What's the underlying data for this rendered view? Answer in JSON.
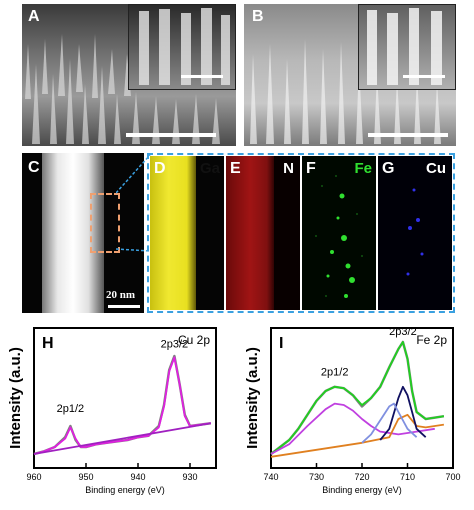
{
  "panels": {
    "A": {
      "label": "A"
    },
    "B": {
      "label": "B"
    },
    "C": {
      "label": "C",
      "scale_bar": "20 nm"
    },
    "D": {
      "label": "D",
      "element": "Ga",
      "color": "#e8e020"
    },
    "E": {
      "label": "E",
      "element": "N",
      "color": "#c01818"
    },
    "F": {
      "label": "F",
      "element": "Fe",
      "color": "#30e030"
    },
    "G": {
      "label": "G",
      "element": "Cu",
      "color": "#3030e8"
    }
  },
  "chart_data": [
    {
      "type": "line",
      "panel": "H",
      "title": "Cu 2p",
      "xlabel": "Binding energy (eV)",
      "ylabel": "Intensity (a.u.)",
      "xlim": [
        960,
        925
      ],
      "x_reversed": true,
      "xticks": [
        960,
        950,
        940,
        930
      ],
      "annotations": [
        "2p1/2",
        "2p3/2"
      ],
      "series": [
        {
          "color": "#808080",
          "x": [
            960,
            958,
            956,
            954,
            953,
            952,
            951,
            950,
            948,
            946,
            944,
            942,
            940,
            938,
            936,
            935,
            934,
            933,
            932,
            931,
            930,
            928,
            926
          ],
          "y": [
            0.1,
            0.12,
            0.15,
            0.22,
            0.3,
            0.2,
            0.15,
            0.15,
            0.17,
            0.18,
            0.19,
            0.2,
            0.22,
            0.23,
            0.3,
            0.45,
            0.7,
            0.8,
            0.6,
            0.38,
            0.3,
            0.31,
            0.32
          ]
        },
        {
          "color": "#e020e0",
          "x": [
            960,
            958,
            956,
            954,
            953,
            952,
            951,
            950,
            948,
            946,
            944,
            942,
            940,
            938,
            936,
            935,
            934,
            933,
            932,
            931,
            930,
            928,
            926
          ],
          "y": [
            0.1,
            0.12,
            0.15,
            0.21,
            0.29,
            0.21,
            0.15,
            0.15,
            0.17,
            0.18,
            0.19,
            0.2,
            0.22,
            0.23,
            0.29,
            0.44,
            0.69,
            0.79,
            0.6,
            0.37,
            0.3,
            0.31,
            0.32
          ]
        },
        {
          "color": "#a020c0",
          "x": [
            960,
            926
          ],
          "y": [
            0.1,
            0.32
          ]
        }
      ]
    },
    {
      "type": "line",
      "panel": "I",
      "title": "Fe 2p",
      "xlabel": "Binding energy (eV)",
      "ylabel": "Intensity (a.u.)",
      "xlim": [
        740,
        700
      ],
      "x_reversed": true,
      "xticks": [
        740,
        730,
        720,
        710,
        700
      ],
      "annotations": [
        "2p1/2",
        "2p3/2"
      ],
      "series": [
        {
          "color": "#808080",
          "x": [
            740,
            738,
            736,
            734,
            732,
            730,
            728,
            726,
            724,
            722,
            720,
            718,
            716,
            714,
            712,
            711,
            710,
            709,
            708,
            706,
            704,
            702
          ],
          "y": [
            0.1,
            0.15,
            0.2,
            0.28,
            0.38,
            0.48,
            0.55,
            0.58,
            0.57,
            0.52,
            0.44,
            0.5,
            0.58,
            0.72,
            0.85,
            0.9,
            0.78,
            0.55,
            0.4,
            0.35,
            0.36,
            0.37
          ]
        },
        {
          "color": "#20d020",
          "x": [
            740,
            738,
            736,
            734,
            732,
            730,
            728,
            726,
            724,
            722,
            720,
            718,
            716,
            714,
            712,
            711,
            710,
            709,
            708,
            706,
            704,
            702
          ],
          "y": [
            0.1,
            0.15,
            0.2,
            0.28,
            0.38,
            0.48,
            0.55,
            0.58,
            0.57,
            0.52,
            0.45,
            0.5,
            0.58,
            0.72,
            0.85,
            0.9,
            0.78,
            0.55,
            0.4,
            0.35,
            0.36,
            0.37
          ]
        },
        {
          "color": "#c040e0",
          "x": [
            740,
            736,
            732,
            728,
            726,
            724,
            722,
            720,
            718,
            716,
            712,
            708,
            704
          ],
          "y": [
            0.1,
            0.17,
            0.3,
            0.42,
            0.46,
            0.45,
            0.41,
            0.35,
            0.3,
            0.26,
            0.24,
            0.26,
            0.28
          ]
        },
        {
          "color": "#e08020",
          "x": [
            740,
            730,
            720,
            714,
            712,
            710,
            708,
            706,
            704,
            702
          ],
          "y": [
            0.08,
            0.13,
            0.18,
            0.22,
            0.35,
            0.38,
            0.3,
            0.29,
            0.3,
            0.31
          ]
        },
        {
          "color": "#101060",
          "x": [
            716,
            714,
            712,
            711,
            710,
            709,
            708,
            706
          ],
          "y": [
            0.2,
            0.28,
            0.5,
            0.58,
            0.52,
            0.4,
            0.28,
            0.22
          ]
        },
        {
          "color": "#8090e0",
          "x": [
            720,
            718,
            716,
            714,
            713,
            712,
            710,
            708
          ],
          "y": [
            0.18,
            0.24,
            0.34,
            0.44,
            0.46,
            0.4,
            0.28,
            0.22
          ]
        }
      ]
    }
  ]
}
